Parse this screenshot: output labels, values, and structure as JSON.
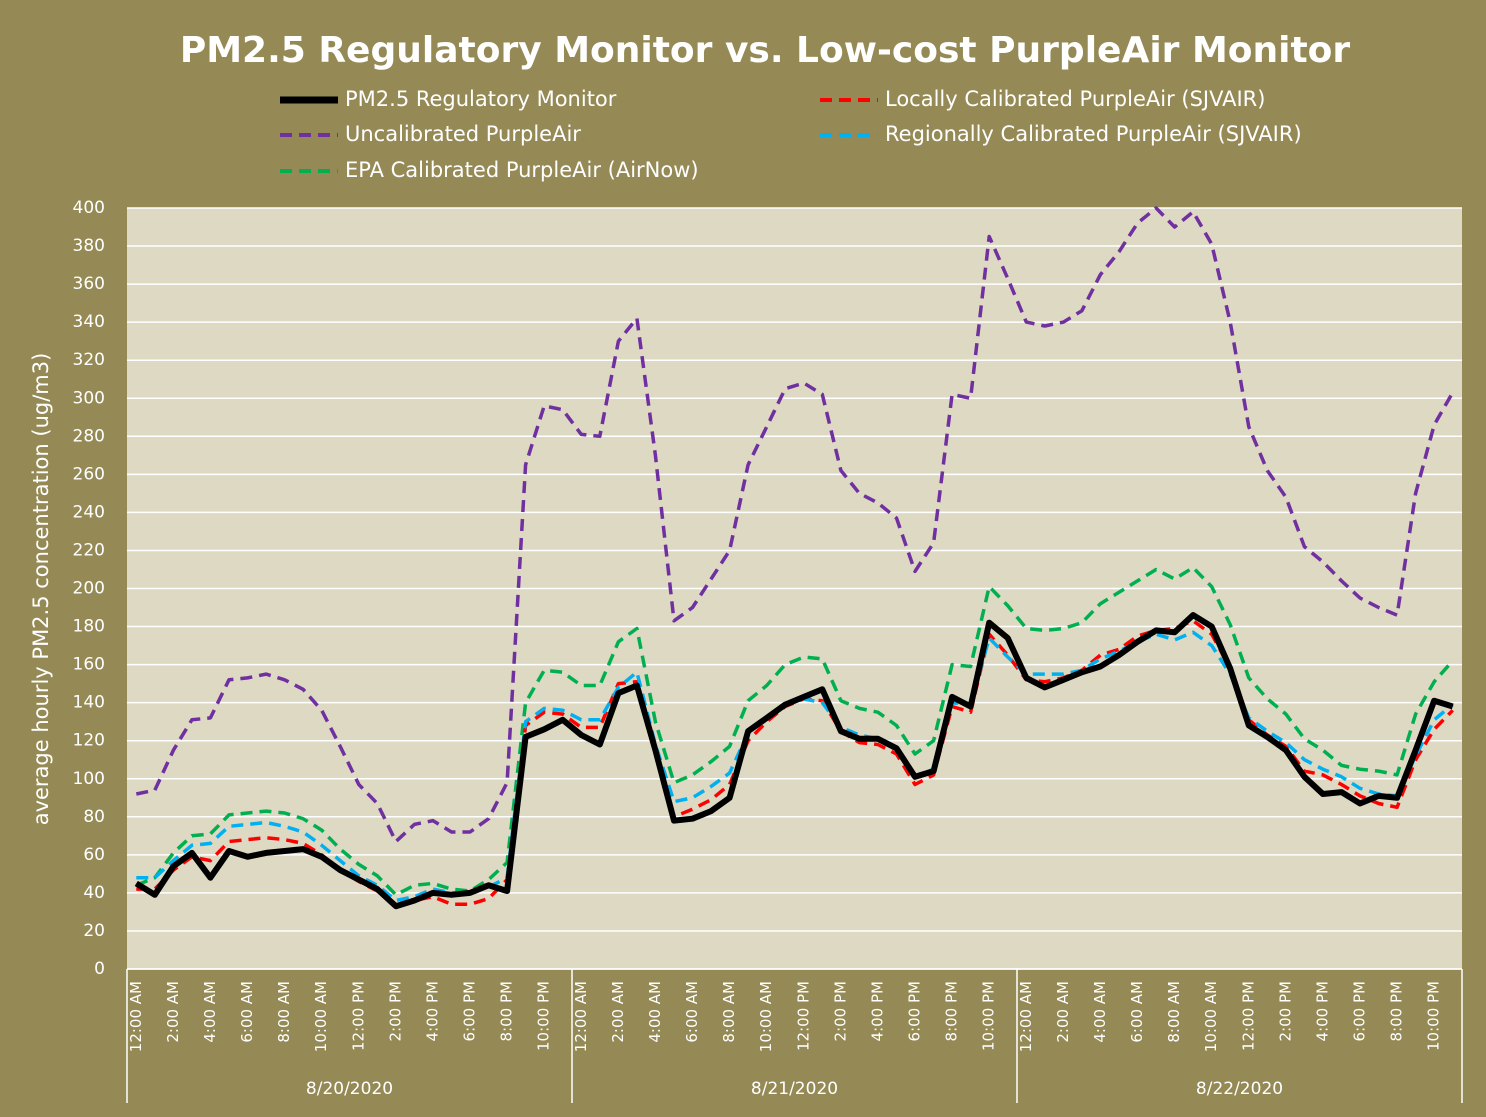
{
  "chart_data": {
    "type": "line",
    "title": "PM2.5 Regulatory Monitor vs. Low-cost PurpleAir Monitor",
    "y_label": "average hourly PM2.5 concentration (ug/m3)",
    "categories": [
      "12:00 AM",
      null,
      "2:00 AM",
      null,
      "4:00 AM",
      null,
      "6:00 AM",
      null,
      "8:00 AM",
      null,
      "10:00 AM",
      null,
      "12:00 PM",
      null,
      "2:00 PM",
      null,
      "4:00 PM",
      null,
      "6:00 PM",
      null,
      "8:00 PM",
      null,
      "10:00 PM",
      null,
      "12:00 AM",
      null,
      "2:00 AM",
      null,
      "4:00 AM",
      null,
      "6:00 AM",
      null,
      "8:00 AM",
      null,
      "10:00 AM",
      null,
      "12:00 PM",
      null,
      "2:00 PM",
      null,
      "4:00 PM",
      null,
      "6:00 PM",
      null,
      "8:00 PM",
      null,
      "10:00 PM",
      null,
      "12:00 AM",
      null,
      "2:00 AM",
      null,
      "4:00 AM",
      null,
      "6:00 AM",
      null,
      "8:00 AM",
      null,
      "10:00 AM",
      null,
      "12:00 PM",
      null,
      "2:00 PM",
      null,
      "4:00 PM",
      null,
      "6:00 PM",
      null,
      "8:00 PM",
      null,
      "10:00 PM",
      null
    ],
    "groups": [
      "8/20/2020",
      "8/21/2020",
      "8/22/2020"
    ],
    "ylim": [
      0,
      400
    ],
    "yticks": [
      0,
      20,
      40,
      60,
      80,
      100,
      120,
      140,
      160,
      180,
      200,
      220,
      240,
      260,
      280,
      300,
      320,
      340,
      360,
      380,
      400
    ],
    "grid": true,
    "series": [
      {
        "name": "PM2.5 Regulatory Monitor",
        "color": "#000000",
        "dashed": false,
        "values": [
          45,
          39,
          54,
          61,
          48,
          62,
          59,
          61,
          62,
          63,
          59,
          52,
          47,
          42,
          33,
          36,
          40,
          39,
          40,
          44,
          41,
          122,
          126,
          131,
          123,
          118,
          145,
          149,
          115,
          78,
          79,
          83,
          90,
          125,
          132,
          139,
          143,
          147,
          125,
          121,
          121,
          116,
          101,
          104,
          143,
          138,
          182,
          174,
          153,
          148,
          152,
          156,
          159,
          165,
          172,
          178,
          177,
          186,
          180,
          158,
          128,
          122,
          115,
          101,
          92,
          93,
          87,
          91,
          90,
          115,
          141,
          138
        ]
      },
      {
        "name": "Uncalibrated PurpleAir",
        "color": "#7030a0",
        "dashed": true,
        "values": [
          92,
          94,
          115,
          131,
          132,
          152,
          153,
          155,
          152,
          147,
          136,
          117,
          97,
          87,
          67,
          76,
          78,
          72,
          72,
          79,
          98,
          265,
          296,
          294,
          281,
          280,
          330,
          342,
          270,
          183,
          190,
          205,
          220,
          265,
          285,
          305,
          308,
          302,
          262,
          250,
          245,
          237,
          209,
          224,
          302,
          300,
          385,
          363,
          340,
          338,
          340,
          346,
          365,
          377,
          392,
          400,
          390,
          398,
          381,
          340,
          285,
          262,
          248,
          222,
          214,
          204,
          195,
          190,
          186,
          250,
          286,
          303
        ]
      },
      {
        "name": "EPA Calibrated PurpleAir (AirNow)",
        "color": "#00b050",
        "dashed": true,
        "values": [
          44,
          48,
          61,
          70,
          71,
          81,
          82,
          83,
          82,
          79,
          73,
          63,
          55,
          49,
          39,
          44,
          45,
          42,
          41,
          47,
          56,
          140,
          157,
          156,
          149,
          149,
          172,
          179,
          130,
          98,
          102,
          109,
          117,
          141,
          149,
          160,
          164,
          163,
          141,
          137,
          135,
          128,
          113,
          120,
          160,
          159,
          201,
          191,
          179,
          178,
          179,
          182,
          192,
          198,
          204,
          210,
          205,
          211,
          201,
          181,
          153,
          142,
          134,
          121,
          115,
          107,
          105,
          104,
          102,
          134,
          151,
          162
        ]
      },
      {
        "name": "Locally Calibrated PurpleAir (SJVAIR)",
        "color": "#ff0000",
        "dashed": true,
        "values": [
          42,
          42,
          52,
          59,
          57,
          67,
          68,
          69,
          68,
          66,
          60,
          52,
          46,
          41,
          34,
          36,
          38,
          34,
          34,
          37,
          47,
          128,
          135,
          134,
          127,
          127,
          150,
          151,
          117,
          80,
          84,
          89,
          97,
          120,
          130,
          138,
          142,
          141,
          125,
          119,
          118,
          113,
          97,
          102,
          138,
          135,
          176,
          165,
          152,
          151,
          153,
          157,
          165,
          168,
          175,
          178,
          179,
          183,
          176,
          158,
          131,
          123,
          117,
          104,
          102,
          97,
          91,
          87,
          85,
          110,
          126,
          136
        ]
      },
      {
        "name": "Regionally Calibrated PurpleAir (SJVAIR)",
        "color": "#00b0f0",
        "dashed": true,
        "values": [
          48,
          48,
          57,
          65,
          66,
          75,
          76,
          77,
          75,
          72,
          65,
          57,
          49,
          44,
          36,
          38,
          42,
          40,
          40,
          43,
          48,
          130,
          137,
          136,
          131,
          131,
          148,
          156,
          118,
          88,
          90,
          96,
          103,
          124,
          132,
          139,
          142,
          140,
          127,
          123,
          121,
          116,
          101,
          105,
          140,
          139,
          174,
          164,
          155,
          155,
          155,
          157,
          163,
          167,
          172,
          176,
          173,
          177,
          170,
          155,
          132,
          125,
          119,
          110,
          105,
          101,
          95,
          92,
          91,
          112,
          131,
          139
        ]
      }
    ]
  }
}
